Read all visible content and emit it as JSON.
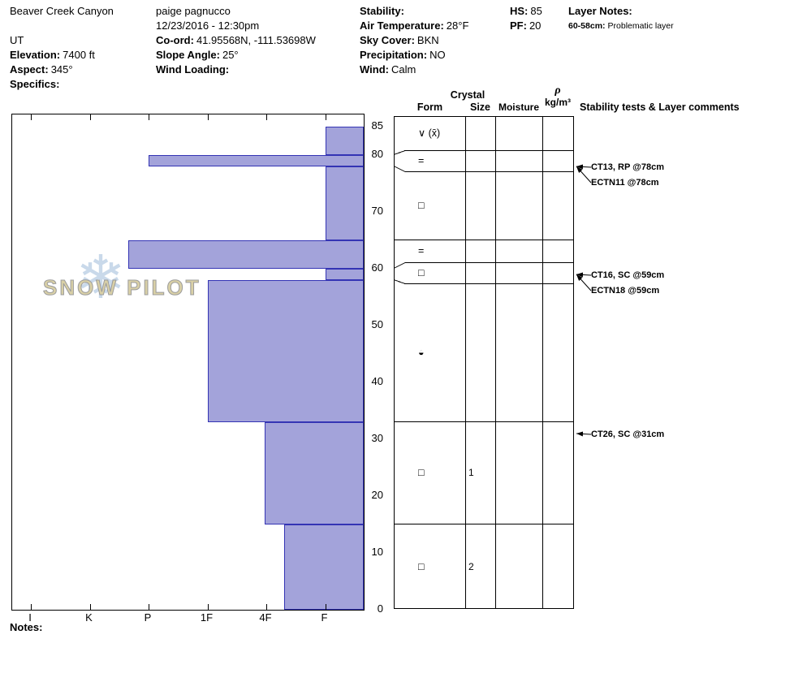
{
  "header": {
    "site_name": "Beaver Creek Canyon",
    "state": "UT",
    "elevation_label": "Elevation:",
    "elevation_value": "7400 ft",
    "aspect_label": "Aspect:",
    "aspect_value": "345°",
    "specifics_label": "Specifics:",
    "observer": "paige pagnucco",
    "datetime": "12/23/2016 - 12:30pm",
    "coord_label": "Co-ord:",
    "coord_value": "41.95568N, -111.53698W",
    "slope_angle_label": "Slope Angle:",
    "slope_angle_value": "25°",
    "wind_loading_label": "Wind Loading:",
    "stability_label": "Stability:",
    "air_temp_label": "Air Temperature:",
    "air_temp_value": "28°F",
    "sky_label": "Sky Cover:",
    "sky_value": "BKN",
    "precip_label": "Precipitation:",
    "precip_value": "NO",
    "wind_label": "Wind:",
    "wind_value": "Calm",
    "hs_label": "HS:",
    "hs_value": "85",
    "pf_label": "PF:",
    "pf_value": "20",
    "layer_notes_label": "Layer Notes:",
    "layer_note_depth": "60-58cm:",
    "layer_note_text": "Problematic layer"
  },
  "table": {
    "crystal_header": "Crystal",
    "form_header": "Form",
    "size_header": "Size",
    "moisture_header": "Moisture",
    "density_symbol": "ρ",
    "density_units": "kg/m³",
    "comments_header": "Stability tests & Layer comments"
  },
  "notes_label": "Notes:",
  "chart_data": {
    "type": "bar",
    "subtype": "snow-hardness-profile",
    "watermark": "SNOW PILOT",
    "hardness_axis": [
      "I",
      "K",
      "P",
      "1F",
      "4F",
      "F"
    ],
    "depth_ticks": [
      85,
      80,
      70,
      60,
      50,
      40,
      30,
      20,
      10,
      0
    ],
    "depth_units": "cm",
    "snow_height_cm": 85,
    "layers": [
      {
        "top_cm": 85,
        "bottom_cm": 80,
        "hardness": "F",
        "hardness_index": 5.0,
        "form": "∨ (x̄)",
        "size": ""
      },
      {
        "top_cm": 80,
        "bottom_cm": 78,
        "hardness": "P",
        "hardness_index": 2.0,
        "form": "=",
        "size": ""
      },
      {
        "top_cm": 78,
        "bottom_cm": 65,
        "hardness": "F",
        "hardness_index": 5.0,
        "form": "□",
        "size": ""
      },
      {
        "top_cm": 65,
        "bottom_cm": 60,
        "hardness": "P+",
        "hardness_index": 1.66,
        "form": "=",
        "size": ""
      },
      {
        "top_cm": 60,
        "bottom_cm": 58,
        "hardness": "F",
        "hardness_index": 5.0,
        "form": "□",
        "size": ""
      },
      {
        "top_cm": 58,
        "bottom_cm": 33,
        "hardness": "1F",
        "hardness_index": 3.0,
        "form": "◒",
        "size": ""
      },
      {
        "top_cm": 33,
        "bottom_cm": 15,
        "hardness": "4F",
        "hardness_index": 3.97,
        "form": "□",
        "size": "1"
      },
      {
        "top_cm": 15,
        "bottom_cm": 0,
        "hardness": "4F-",
        "hardness_index": 4.3,
        "form": "□",
        "size": "2"
      }
    ],
    "annotations": [
      {
        "text": "CT13, RP @78cm",
        "depth_cm": 78,
        "offset": 0
      },
      {
        "text": "ECTN11 @78cm",
        "depth_cm": 78,
        "offset": 19
      },
      {
        "text": "CT16, SC @59cm",
        "depth_cm": 59,
        "offset": 0
      },
      {
        "text": "ECTN18 @59cm",
        "depth_cm": 59,
        "offset": 19
      },
      {
        "text": "CT26, SC @31cm",
        "depth_cm": 31,
        "offset": 0
      }
    ]
  }
}
